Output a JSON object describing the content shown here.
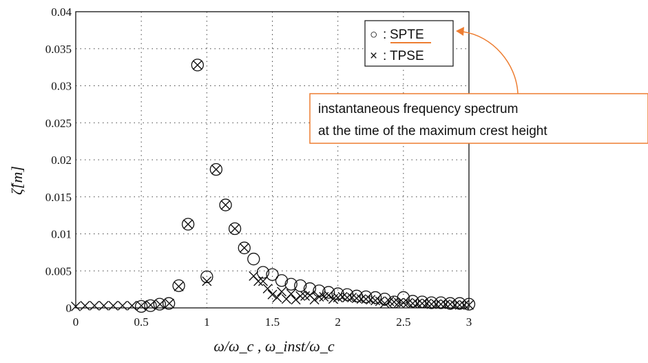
{
  "chart_data": {
    "type": "scatter",
    "xlabel": "ω/ω_c , ω_inst/ω_c",
    "ylabel": "ζ̂[m]",
    "xlim": [
      0,
      3
    ],
    "ylim": [
      0,
      0.04
    ],
    "xticks": [
      "0",
      "0.5",
      "1",
      "1.5",
      "2",
      "2.5",
      "3"
    ],
    "yticks": [
      "0",
      "0.005",
      "0.01",
      "0.015",
      "0.02",
      "0.025",
      "0.03",
      "0.035",
      "0.04"
    ],
    "grid": true,
    "legend_position": "top-right",
    "series": [
      {
        "name": "SPTE",
        "marker": "circle",
        "x": [
          0.5,
          0.57,
          0.64,
          0.71,
          0.786,
          0.857,
          0.929,
          1.0,
          1.071,
          1.143,
          1.214,
          1.286,
          1.357,
          1.429,
          1.5,
          1.571,
          1.643,
          1.714,
          1.786,
          1.857,
          1.929,
          2.0,
          2.071,
          2.143,
          2.214,
          2.286,
          2.357,
          2.429,
          2.5,
          2.571,
          2.643,
          2.714,
          2.786,
          2.857,
          2.929,
          3.0
        ],
        "y": [
          0.0002,
          0.0003,
          0.0005,
          0.0006,
          0.003,
          0.0113,
          0.0328,
          0.0042,
          0.0187,
          0.0139,
          0.0107,
          0.0081,
          0.0066,
          0.0048,
          0.0045,
          0.0037,
          0.0032,
          0.003,
          0.0026,
          0.0023,
          0.0021,
          0.0019,
          0.0018,
          0.0016,
          0.0015,
          0.0014,
          0.0012,
          0.0008,
          0.0014,
          0.0009,
          0.0008,
          0.0007,
          0.0007,
          0.0006,
          0.0006,
          0.0005
        ]
      },
      {
        "name": "TPSE",
        "marker": "x",
        "x": [
          0.0,
          0.071,
          0.143,
          0.214,
          0.286,
          0.357,
          0.429,
          0.5,
          0.571,
          0.643,
          0.714,
          0.786,
          0.857,
          0.929,
          1.0,
          1.071,
          1.143,
          1.214,
          1.286,
          1.357,
          1.393,
          1.429,
          1.464,
          1.5,
          1.536,
          1.571,
          1.607,
          1.643,
          1.679,
          1.714,
          1.75,
          1.786,
          1.821,
          1.857,
          1.893,
          1.929,
          1.964,
          2.0,
          2.036,
          2.071,
          2.107,
          2.143,
          2.179,
          2.214,
          2.25,
          2.286,
          2.321,
          2.357,
          2.393,
          2.429,
          2.464,
          2.5,
          2.536,
          2.571,
          2.607,
          2.643,
          2.679,
          2.714,
          2.75,
          2.786,
          2.821,
          2.857,
          2.893,
          2.929,
          2.964,
          3.0
        ],
        "y": [
          0.0002,
          0.0003,
          0.0003,
          0.0003,
          0.0003,
          0.0003,
          0.0003,
          0.0003,
          0.0004,
          0.0005,
          0.0006,
          0.0029,
          0.0113,
          0.0328,
          0.0036,
          0.0187,
          0.0139,
          0.0107,
          0.0081,
          0.0043,
          0.0036,
          0.0036,
          0.0026,
          0.0018,
          0.0014,
          0.0022,
          0.0012,
          0.0019,
          0.0011,
          0.0016,
          0.0016,
          0.0017,
          0.0011,
          0.0015,
          0.0015,
          0.0017,
          0.0012,
          0.0014,
          0.0015,
          0.0014,
          0.0014,
          0.0013,
          0.0012,
          0.0012,
          0.0011,
          0.001,
          0.0009,
          0.0006,
          0.0009,
          0.0008,
          0.0007,
          0.0007,
          0.0007,
          0.0006,
          0.0006,
          0.0006,
          0.0006,
          0.0005,
          0.0005,
          0.0005,
          0.0005,
          0.0005,
          0.0004,
          0.0004,
          0.0004,
          0.0004
        ]
      }
    ],
    "legend": [
      {
        "symbol": "○",
        "separator": ":",
        "label": "SPTE"
      },
      {
        "symbol": "×",
        "separator": ":",
        "label": "TPSE"
      }
    ],
    "annotation": {
      "lines": [
        "instantaneous frequency spectrum",
        "at the time of the maximum crest height"
      ],
      "color": "#ed7d31"
    }
  }
}
